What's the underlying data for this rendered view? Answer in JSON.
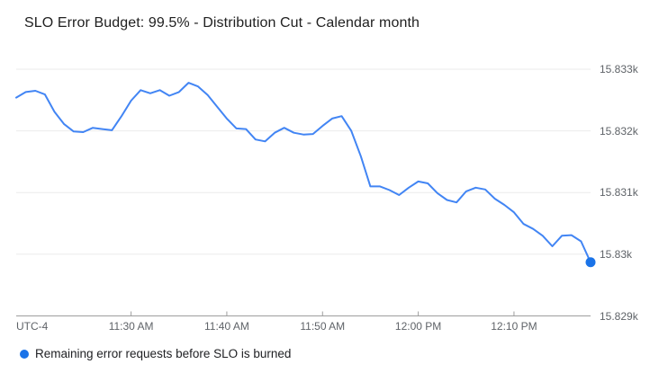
{
  "title": "SLO Error Budget: 99.5% - Distribution Cut - Calendar month",
  "legend": {
    "label": "Remaining error requests before SLO is burned"
  },
  "colors": {
    "line": "#4285f4",
    "end_dot": "#1a73e8",
    "legend_dot": "#1a73e8",
    "gridline": "#ebebeb",
    "axis_line": "#9e9e9e",
    "tick_text": "#5f6368",
    "title_text": "#212121",
    "legend_text": "#202124",
    "background": "#ffffff"
  },
  "chart_data": {
    "type": "line",
    "title": "SLO Error Budget: 99.5% - Distribution Cut - Calendar month",
    "ylabel": "Remaining error requests",
    "y_axis": {
      "min": 15829,
      "max": 15833,
      "ticks": [
        {
          "label": "15.833k",
          "value": 15833
        },
        {
          "label": "15.832k",
          "value": 15832
        },
        {
          "label": "15.831k",
          "value": 15831
        },
        {
          "label": "15.83k",
          "value": 15830
        },
        {
          "label": "15.829k",
          "value": 15829
        }
      ]
    },
    "x_axis": {
      "timezone_label": "UTC-4",
      "start_minute": 0,
      "end_minute": 60,
      "ticks": [
        {
          "label": "11:30 AM",
          "minute": 12
        },
        {
          "label": "11:40 AM",
          "minute": 22
        },
        {
          "label": "11:50 AM",
          "minute": 32
        },
        {
          "label": "12:00 PM",
          "minute": 42
        },
        {
          "label": "12:10 PM",
          "minute": 52
        }
      ]
    },
    "grid": true,
    "legend_position": "bottom-left",
    "end_point_marker": true,
    "series": [
      {
        "name": "Remaining error requests before SLO is burned",
        "values": [
          15832.54,
          15832.63,
          15832.65,
          15832.59,
          15832.31,
          15832.11,
          15831.99,
          15831.98,
          15832.05,
          15832.03,
          15832.01,
          15832.24,
          15832.49,
          15832.66,
          15832.61,
          15832.66,
          15832.57,
          15832.63,
          15832.78,
          15832.72,
          15832.58,
          15832.39,
          15832.2,
          15832.04,
          15832.03,
          15831.86,
          15831.83,
          15831.97,
          15832.05,
          15831.97,
          15831.94,
          15831.95,
          15832.08,
          15832.2,
          15832.24,
          15832.0,
          15831.59,
          15831.1,
          15831.1,
          15831.04,
          15830.96,
          15831.08,
          15831.18,
          15831.15,
          15830.99,
          15830.88,
          15830.84,
          15831.02,
          15831.08,
          15831.05,
          15830.9,
          15830.8,
          15830.68,
          15830.49,
          15830.41,
          15830.3,
          15830.13,
          15830.3,
          15830.31,
          15830.21,
          15829.87
        ]
      }
    ]
  }
}
